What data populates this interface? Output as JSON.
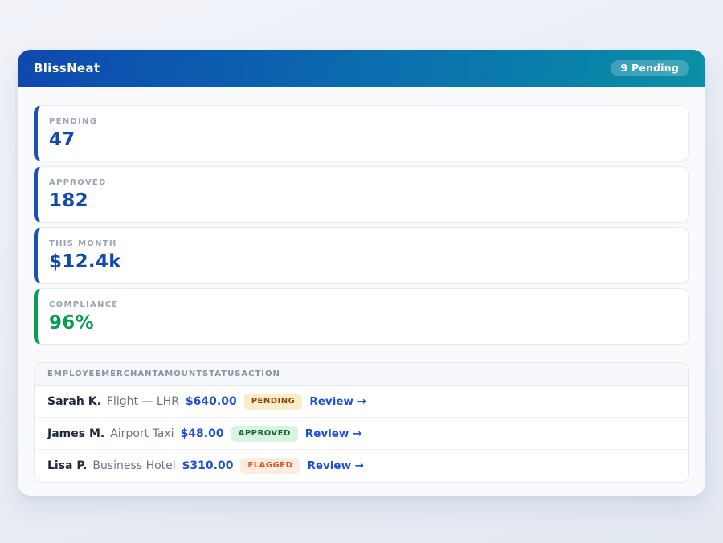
{
  "app": {
    "title": "BlissNeat",
    "header_badge": "9 Pending"
  },
  "colors": {
    "header_gradient_start": "#0e48b0",
    "header_gradient_end": "#0a90a7",
    "stat_accent_blue": "#1149b0",
    "stat_accent_green": "#0a9b55",
    "link_blue": "#1d4ed8",
    "status_pending_bg": "#faeec8",
    "status_pending_text": "#92400e",
    "status_approved_bg": "#d8f3e0",
    "status_approved_text": "#166534",
    "status_flagged_bg": "#fdece0",
    "status_flagged_text": "#e2511c"
  },
  "stats": [
    {
      "label": "PENDING",
      "value": "47"
    },
    {
      "label": "APPROVED",
      "value": "182"
    },
    {
      "label": "THIS MONTH",
      "value": "$12.4k"
    },
    {
      "label": "COMPLIANCE",
      "value": "96%"
    }
  ],
  "table": {
    "headers": [
      "EMPLOYEE",
      "MERCHANT",
      "AMOUNT",
      "STATUS",
      "ACTION"
    ],
    "rows": [
      {
        "employee": "Sarah K.",
        "merchant": "Flight — LHR",
        "amount": "$640.00",
        "status": "PENDING",
        "action": "Review →"
      },
      {
        "employee": "James M.",
        "merchant": "Airport Taxi",
        "amount": "$48.00",
        "status": "APPROVED",
        "action": "Review →"
      },
      {
        "employee": "Lisa P.",
        "merchant": "Business Hotel",
        "amount": "$310.00",
        "status": "FLAGGED",
        "action": "Review →"
      }
    ]
  }
}
